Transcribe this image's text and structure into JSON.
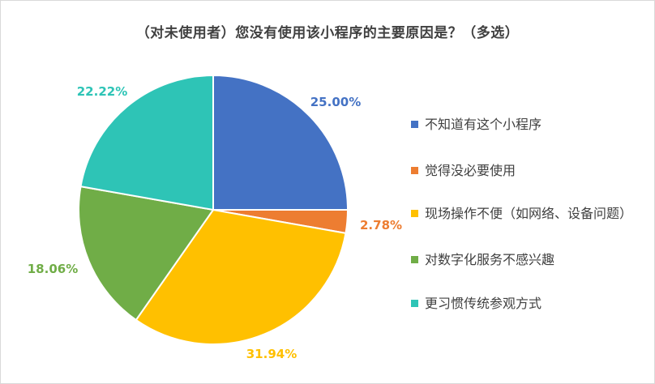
{
  "title": "（对未使用者）您没有使用该小程序的主要原因是？（多选）",
  "chart_data": {
    "type": "pie",
    "title": "（对未使用者）您没有使用该小程序的主要原因是？（多选）",
    "legend_position": "right",
    "slices": [
      {
        "label": "不知道有这个小程序",
        "value": 25.0,
        "display": "25.00%",
        "color": "#4472C4"
      },
      {
        "label": "觉得没必要使用",
        "value": 2.78,
        "display": "2.78%",
        "color": "#ED7D31"
      },
      {
        "label": "现场操作不便（如网络、设备问题）",
        "value": 31.94,
        "display": "31.94%",
        "color": "#FFC000"
      },
      {
        "label": "对数字化服务不感兴趣",
        "value": 18.06,
        "display": "18.06%",
        "color": "#70AD47"
      },
      {
        "label": "更习惯传统参观方式",
        "value": 22.22,
        "display": "22.22%",
        "color": "#2EC4B6"
      }
    ]
  }
}
